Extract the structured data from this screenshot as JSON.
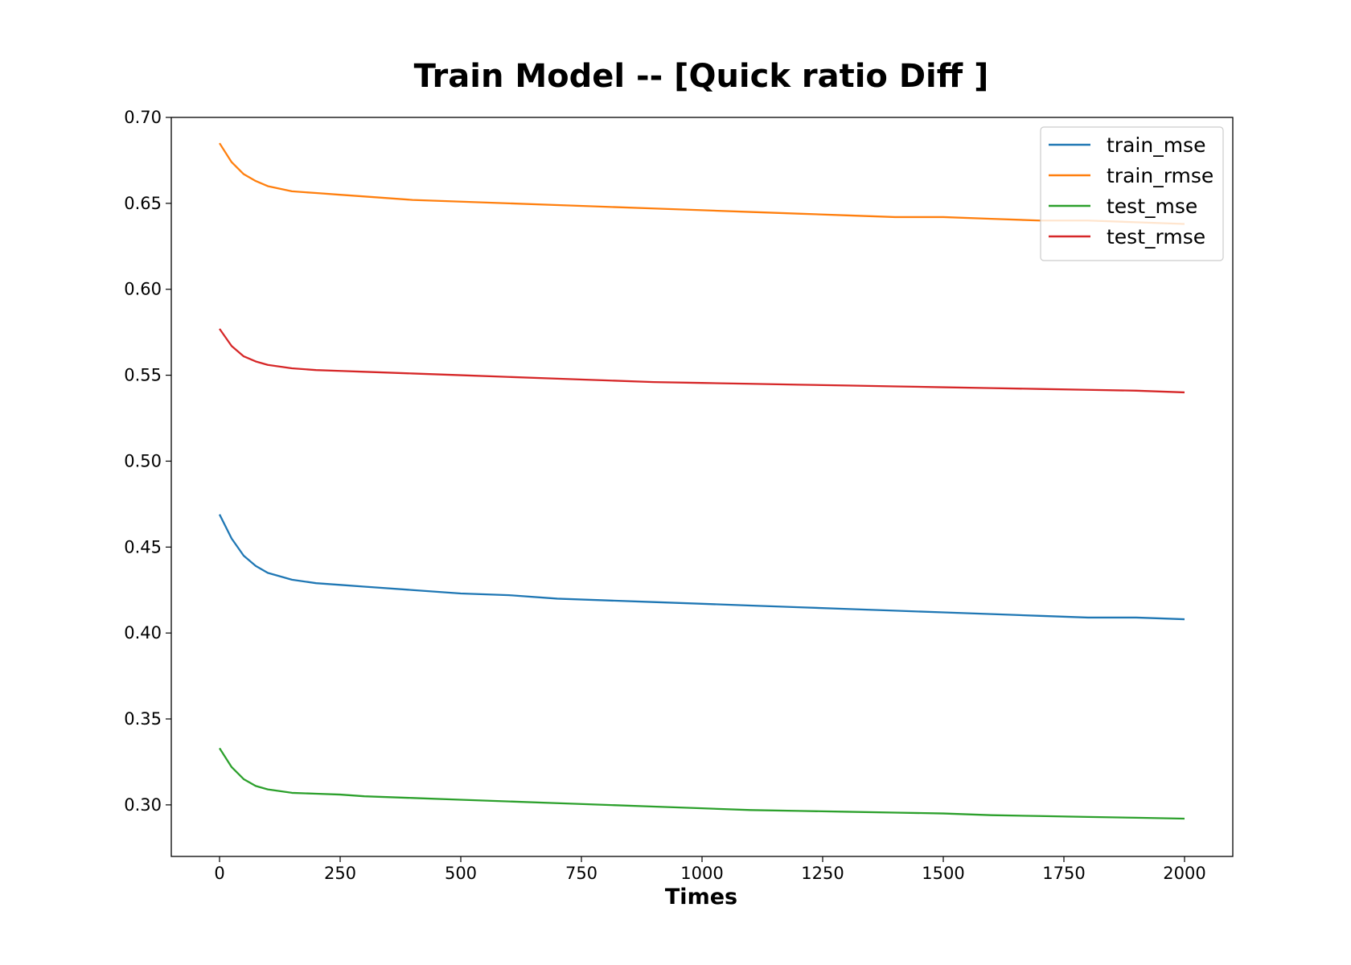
{
  "chart_data": {
    "type": "line",
    "title": "Train Model -- [Quick ratio Diff ]",
    "xlabel": "Times",
    "ylabel": "",
    "xlim": [
      -100,
      2100
    ],
    "ylim": [
      0.27,
      0.7
    ],
    "xticks": [
      0,
      250,
      500,
      750,
      1000,
      1250,
      1500,
      1750,
      2000
    ],
    "xtick_labels": [
      "0",
      "250",
      "500",
      "750",
      "1000",
      "1250",
      "1500",
      "1750",
      "2000"
    ],
    "yticks": [
      0.3,
      0.35,
      0.4,
      0.45,
      0.5,
      0.55,
      0.6,
      0.65,
      0.7
    ],
    "ytick_labels": [
      "0.30",
      "0.35",
      "0.40",
      "0.45",
      "0.50",
      "0.55",
      "0.60",
      "0.65",
      "0.70"
    ],
    "grid": false,
    "legend_position": "top-right",
    "series": [
      {
        "name": "train_mse",
        "color": "#1f77b4",
        "x": [
          0,
          25,
          50,
          75,
          100,
          150,
          200,
          250,
          300,
          400,
          500,
          600,
          700,
          800,
          900,
          1000,
          1100,
          1200,
          1300,
          1400,
          1500,
          1600,
          1700,
          1800,
          1900,
          2000
        ],
        "y": [
          0.469,
          0.455,
          0.445,
          0.439,
          0.435,
          0.431,
          0.429,
          0.428,
          0.427,
          0.425,
          0.423,
          0.422,
          0.42,
          0.419,
          0.418,
          0.417,
          0.416,
          0.415,
          0.414,
          0.413,
          0.412,
          0.411,
          0.41,
          0.409,
          0.409,
          0.408
        ]
      },
      {
        "name": "train_rmse",
        "color": "#ff7f0e",
        "x": [
          0,
          25,
          50,
          75,
          100,
          150,
          200,
          250,
          300,
          400,
          500,
          600,
          700,
          800,
          900,
          1000,
          1100,
          1200,
          1300,
          1400,
          1500,
          1600,
          1700,
          1800,
          1900,
          2000
        ],
        "y": [
          0.685,
          0.674,
          0.667,
          0.663,
          0.66,
          0.657,
          0.656,
          0.655,
          0.654,
          0.652,
          0.651,
          0.65,
          0.649,
          0.648,
          0.647,
          0.646,
          0.645,
          0.644,
          0.643,
          0.642,
          0.642,
          0.641,
          0.64,
          0.64,
          0.639,
          0.638
        ]
      },
      {
        "name": "test_mse",
        "color": "#2ca02c",
        "x": [
          0,
          25,
          50,
          75,
          100,
          150,
          200,
          250,
          300,
          400,
          500,
          600,
          700,
          800,
          900,
          1000,
          1100,
          1200,
          1300,
          1400,
          1500,
          1600,
          1700,
          1800,
          1900,
          2000
        ],
        "y": [
          0.333,
          0.322,
          0.315,
          0.311,
          0.309,
          0.307,
          0.3065,
          0.306,
          0.305,
          0.304,
          0.303,
          0.302,
          0.301,
          0.3,
          0.299,
          0.298,
          0.297,
          0.2965,
          0.296,
          0.2955,
          0.295,
          0.294,
          0.2935,
          0.293,
          0.2925,
          0.292
        ]
      },
      {
        "name": "test_rmse",
        "color": "#d62728",
        "x": [
          0,
          25,
          50,
          75,
          100,
          150,
          200,
          250,
          300,
          400,
          500,
          600,
          700,
          800,
          900,
          1000,
          1100,
          1200,
          1300,
          1400,
          1500,
          1600,
          1700,
          1800,
          1900,
          2000
        ],
        "y": [
          0.577,
          0.567,
          0.561,
          0.558,
          0.556,
          0.554,
          0.553,
          0.5525,
          0.552,
          0.551,
          0.55,
          0.549,
          0.548,
          0.547,
          0.546,
          0.5455,
          0.545,
          0.5445,
          0.544,
          0.5435,
          0.543,
          0.5425,
          0.542,
          0.5415,
          0.541,
          0.54
        ]
      }
    ]
  }
}
